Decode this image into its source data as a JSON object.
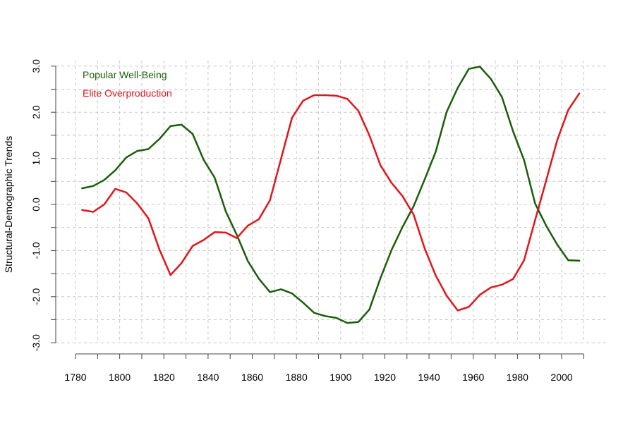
{
  "chart_data": {
    "type": "line",
    "title": "",
    "xlabel": "",
    "ylabel": "Structural-Demographic Trends",
    "xlim": [
      1780,
      2010
    ],
    "ylim": [
      -3.0,
      3.0
    ],
    "xticks": [
      1780,
      1800,
      1820,
      1840,
      1860,
      1880,
      1900,
      1920,
      1940,
      1960,
      1980,
      2000
    ],
    "x_minor_ticks": [
      1790,
      1810,
      1830,
      1850,
      1870,
      1890,
      1910,
      1930,
      1950,
      1970,
      1990,
      2010
    ],
    "yticks": [
      -3.0,
      -2.0,
      -1.0,
      0.0,
      1.0,
      2.0,
      3.0
    ],
    "ytick_labels": [
      "-3.0",
      "-2.0",
      "-1.0",
      "0.0",
      "1.0",
      "2.0",
      "3.0"
    ],
    "y_minor_ticks": [
      -2.5,
      -1.5,
      -0.5,
      0.5,
      1.5,
      2.5
    ],
    "grid": true,
    "legend": "top-left",
    "x": [
      1783,
      1788,
      1793,
      1798,
      1803,
      1808,
      1813,
      1818,
      1823,
      1828,
      1833,
      1838,
      1843,
      1848,
      1853,
      1858,
      1863,
      1868,
      1873,
      1878,
      1883,
      1888,
      1893,
      1898,
      1903,
      1908,
      1913,
      1918,
      1923,
      1928,
      1933,
      1938,
      1943,
      1948,
      1953,
      1958,
      1963,
      1968,
      1973,
      1978,
      1983,
      1988,
      1993,
      1998,
      2003,
      2008
    ],
    "series": [
      {
        "name": "Popular Well-Being",
        "color": "#1a5e0a",
        "values": [
          0.35,
          0.4,
          0.53,
          0.74,
          1.02,
          1.16,
          1.2,
          1.42,
          1.7,
          1.73,
          1.53,
          0.97,
          0.58,
          -0.15,
          -0.66,
          -1.23,
          -1.61,
          -1.9,
          -1.84,
          -1.93,
          -2.13,
          -2.35,
          -2.42,
          -2.46,
          -2.57,
          -2.55,
          -2.28,
          -1.6,
          -0.99,
          -0.49,
          -0.04,
          0.54,
          1.14,
          2.01,
          2.53,
          2.94,
          2.99,
          2.72,
          2.33,
          1.59,
          0.96,
          0.02,
          -0.46,
          -0.87,
          -1.21,
          -1.22
        ]
      },
      {
        "name": "Elite Overproduction",
        "color": "#e3141c",
        "values": [
          -0.12,
          -0.16,
          0.0,
          0.34,
          0.26,
          0.02,
          -0.3,
          -0.98,
          -1.53,
          -1.27,
          -0.9,
          -0.77,
          -0.6,
          -0.61,
          -0.73,
          -0.46,
          -0.32,
          0.09,
          0.99,
          1.88,
          2.25,
          2.37,
          2.37,
          2.36,
          2.29,
          2.03,
          1.5,
          0.85,
          0.47,
          0.18,
          -0.22,
          -0.95,
          -1.54,
          -1.98,
          -2.3,
          -2.22,
          -1.96,
          -1.8,
          -1.74,
          -1.62,
          -1.21,
          -0.34,
          0.52,
          1.39,
          2.05,
          2.41
        ]
      }
    ]
  }
}
